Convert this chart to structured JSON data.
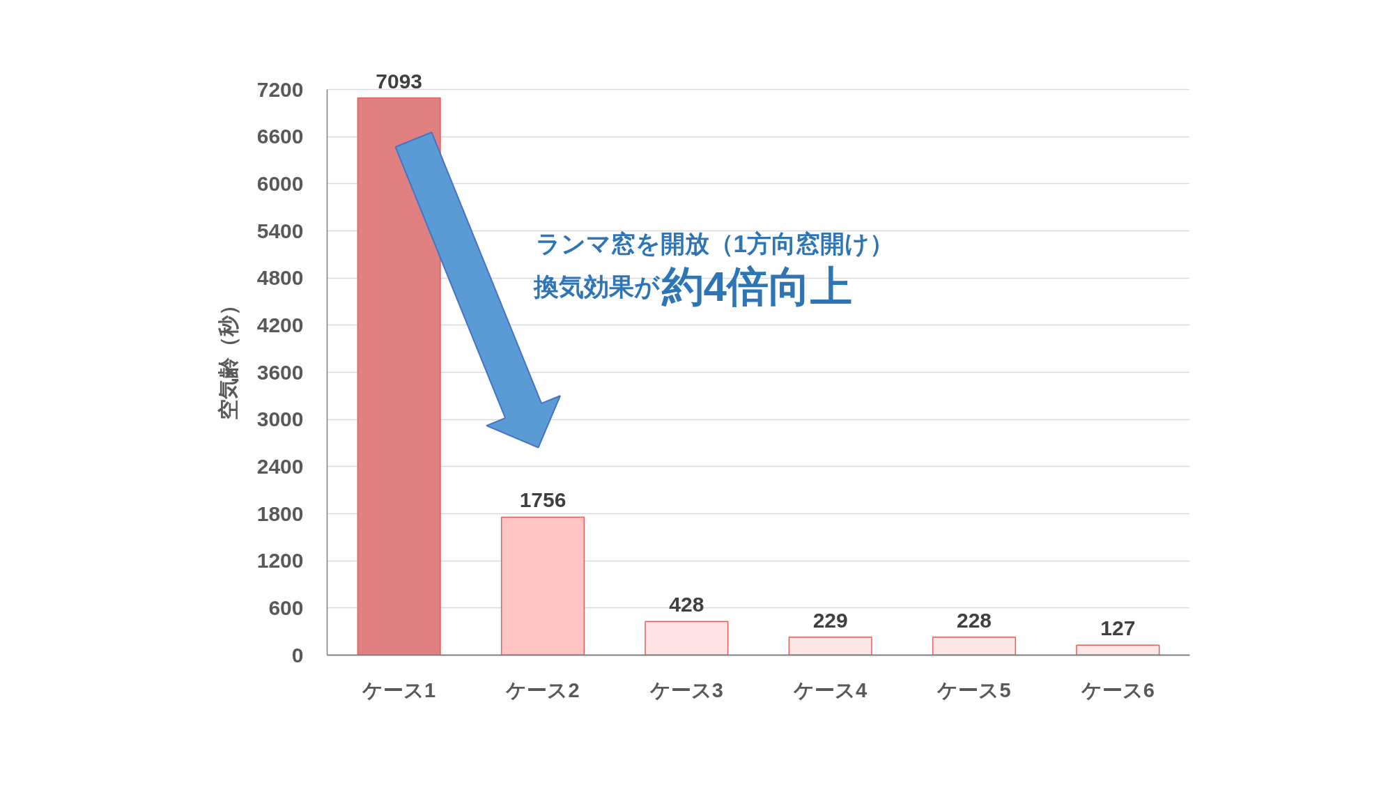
{
  "chart_data": {
    "type": "bar",
    "categories": [
      "ケース1",
      "ケース2",
      "ケース3",
      "ケース4",
      "ケース5",
      "ケース6"
    ],
    "values": [
      7093,
      1756,
      428,
      229,
      228,
      127
    ],
    "colors": [
      "#e08080",
      "#ffc4c4",
      "#fde3e3",
      "#fde6e6",
      "#fde6e6",
      "#fde6e6"
    ],
    "ylabel": "空気齢（秒）",
    "ylim": [
      0,
      7200
    ],
    "yticks": [
      0,
      600,
      1200,
      1800,
      2400,
      3000,
      3600,
      4200,
      4800,
      5400,
      6000,
      6600,
      7200
    ],
    "grid": "y",
    "data_labels": true,
    "annotations": [
      "ランマ窓を開放（1方向窓開け）",
      "換気効果が",
      "約4倍向上"
    ]
  }
}
